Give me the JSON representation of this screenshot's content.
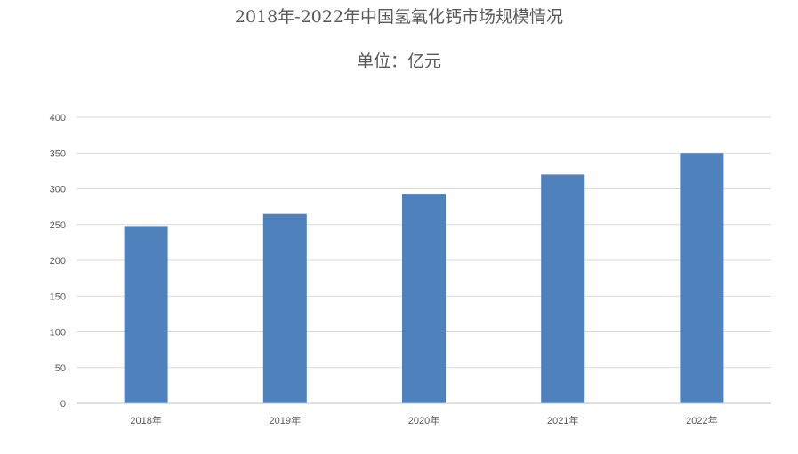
{
  "chart_data": {
    "type": "bar",
    "title": "2018年-2022年中国氢氧化钙市场规模情况",
    "subtitle": "单位：亿元",
    "categories": [
      "2018年",
      "2019年",
      "2020年",
      "2021年",
      "2022年"
    ],
    "values": [
      248,
      265,
      293,
      320,
      350
    ],
    "ylim": [
      0,
      400
    ],
    "yticks": [
      0,
      50,
      100,
      150,
      200,
      250,
      300,
      350,
      400
    ],
    "grid": true,
    "bar_color": "#4F81BD",
    "grid_color": "#D9D9D9",
    "text_color": "#595959"
  }
}
